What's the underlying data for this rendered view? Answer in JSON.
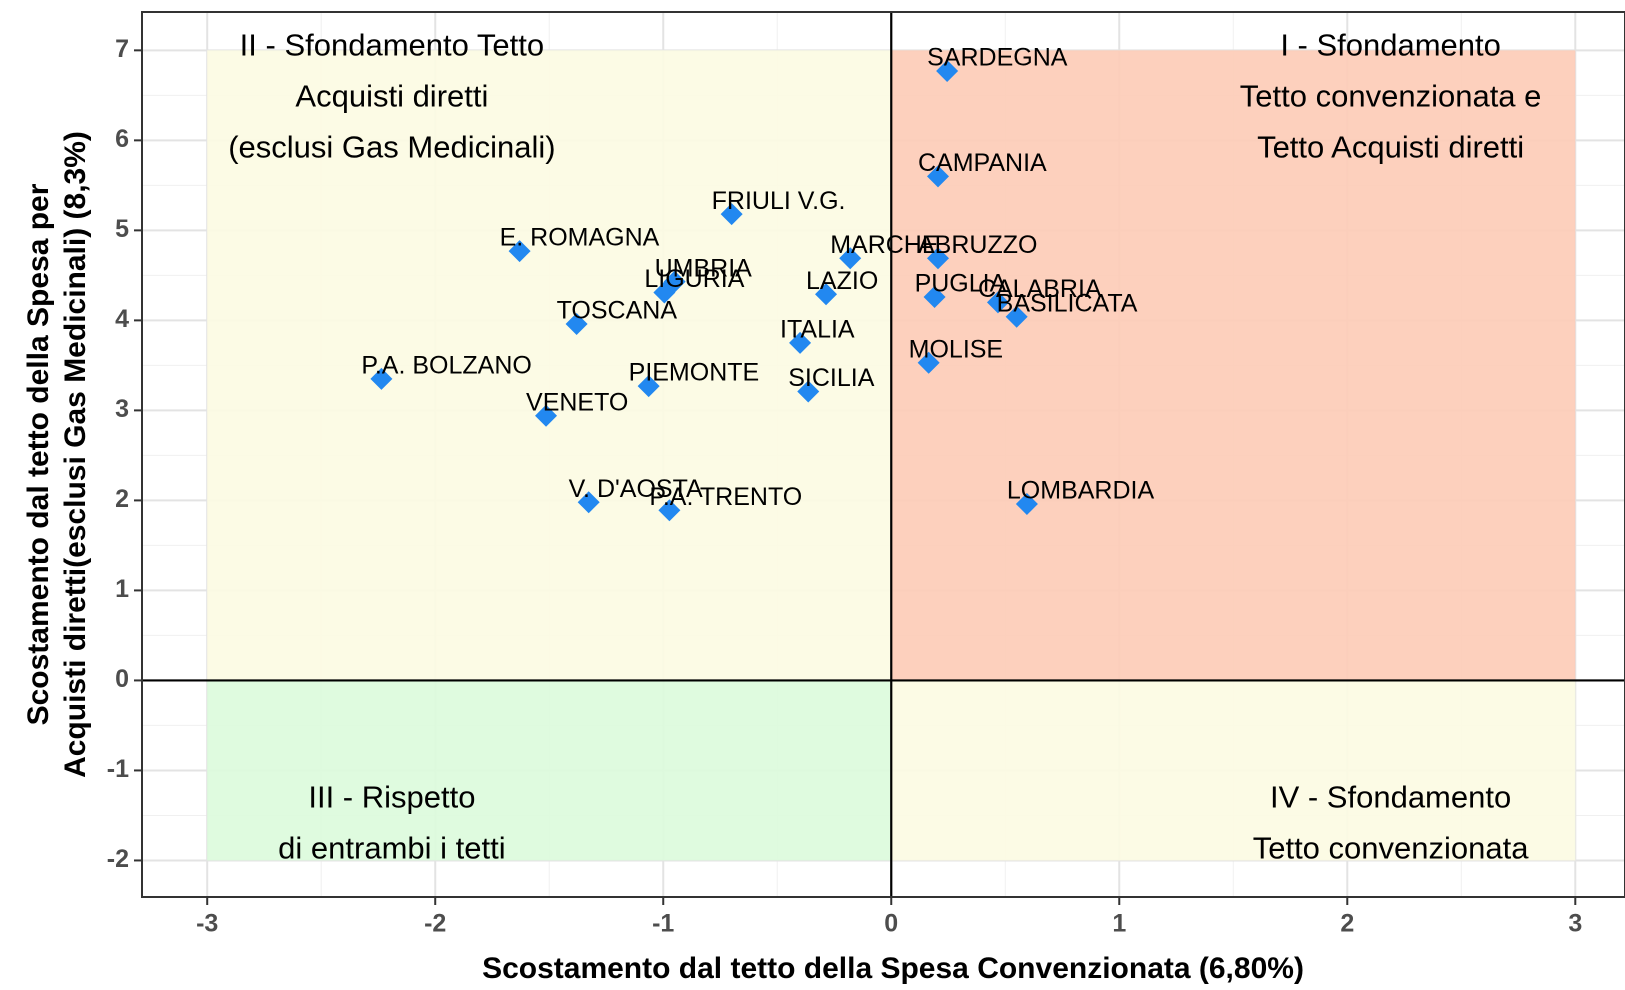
{
  "chart_data": {
    "type": "scatter",
    "xlabel": "Scostamento dal tetto della Spesa Convenzionata (6,80%)",
    "ylabel": [
      "Scostamento dal tetto della Spesa per",
      "Acquisti diretti(esclusi Gas Medicinali) (8,3%)"
    ],
    "xlim": [
      -3.286,
      3.218
    ],
    "ylim": [
      -2.406,
      7.426
    ],
    "xticks": [
      -3,
      -2,
      -1,
      0,
      1,
      2,
      3
    ],
    "yticks": [
      -2,
      -1,
      0,
      1,
      2,
      3,
      4,
      5,
      6,
      7
    ],
    "grid": true,
    "hline": 0,
    "vline": 0,
    "regions": [
      {
        "x": [
          -3,
          0
        ],
        "y": [
          0,
          7
        ],
        "color": "#fcfbe2",
        "label": [
          "II - Sfondamento Tetto",
          "Acquisti diretti",
          "(esclusi Gas Medicinali)"
        ]
      },
      {
        "x": [
          0,
          3
        ],
        "y": [
          0,
          7
        ],
        "color": "#fdcbb6",
        "label": [
          "I - Sfondamento",
          "Tetto convenzionata e",
          "Tetto Acquisti diretti"
        ]
      },
      {
        "x": [
          -3,
          0
        ],
        "y": [
          -2,
          0
        ],
        "color": "#dcfbdc",
        "label": [
          "III - Rispetto",
          "di entrambi i tetti"
        ]
      },
      {
        "x": [
          0,
          3
        ],
        "y": [
          -2,
          0
        ],
        "color": "#fcfbe2",
        "label": [
          "IV - Sfondamento",
          "Tetto convenzionata"
        ]
      }
    ],
    "color": "#2288f0",
    "labels": [
      "SARDEGNA",
      "CAMPANIA",
      "FRIULI V.G.",
      "E. ROMAGNA",
      "MARCHE",
      "ABRUZZO",
      "UMBRIA",
      "LIGURIA",
      "LAZIO",
      "PUGLIA",
      "CALABRIA",
      "BASILICATA",
      "TOSCANA",
      "ITALIA",
      "MOLISE",
      "P.A. BOLZANO",
      "PIEMONTE",
      "SICILIA",
      "VENETO",
      "V. D'AOSTA",
      "P.A. TRENTO",
      "LOMBARDIA"
    ],
    "x": [
      0.245,
      0.205,
      -0.7,
      -1.63,
      -0.18,
      0.205,
      -0.95,
      -0.995,
      -0.286,
      0.19,
      0.468,
      0.55,
      -1.38,
      -0.4,
      0.164,
      -2.236,
      -1.064,
      -0.364,
      -1.514,
      -1.327,
      -0.973,
      0.595
    ],
    "y": [
      6.77,
      5.6,
      5.18,
      4.77,
      4.69,
      4.69,
      4.43,
      4.31,
      4.29,
      4.26,
      4.2,
      4.04,
      3.96,
      3.75,
      3.53,
      3.35,
      3.27,
      3.21,
      2.94,
      1.98,
      1.89,
      1.96
    ]
  }
}
